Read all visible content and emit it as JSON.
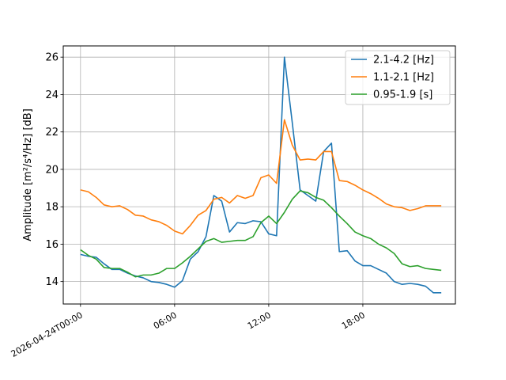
{
  "chart_data": {
    "type": "line",
    "ylabel": "Amplitude [m²/s⁴/Hz] [dB]",
    "ylim": [
      12.8,
      26.6
    ],
    "xlim_hours": [
      -1.1,
      23.9
    ],
    "grid": true,
    "legend_position": "top-right",
    "yticks": [
      14,
      16,
      18,
      20,
      22,
      24,
      26
    ],
    "xticks": [
      {
        "hour": 0,
        "label": "2026-04-24T00:00"
      },
      {
        "hour": 6,
        "label": "06:00"
      },
      {
        "hour": 12,
        "label": "12:00"
      },
      {
        "hour": 18,
        "label": "18:00"
      }
    ],
    "x_hours": [
      0,
      0.5,
      1,
      1.5,
      2,
      2.5,
      3,
      3.5,
      4,
      4.5,
      5,
      5.5,
      6,
      6.5,
      7,
      7.5,
      8,
      8.5,
      9,
      9.5,
      10,
      10.5,
      11,
      11.5,
      12,
      12.5,
      13,
      13.5,
      14,
      14.5,
      15,
      15.5,
      16,
      16.5,
      17,
      17.5,
      18,
      18.5,
      19,
      19.5,
      20,
      20.5,
      21,
      21.5,
      22,
      22.5,
      23
    ],
    "series": [
      {
        "name": "2.1-4.2 [Hz]",
        "color": "#1f77b4",
        "values": [
          15.45,
          15.35,
          15.3,
          14.95,
          14.65,
          14.65,
          14.45,
          14.3,
          14.2,
          14.0,
          13.95,
          13.85,
          13.7,
          14.05,
          15.2,
          15.6,
          16.4,
          18.6,
          18.3,
          16.65,
          17.15,
          17.1,
          17.25,
          17.2,
          16.55,
          16.45,
          26.0,
          22.5,
          18.9,
          18.6,
          18.3,
          20.95,
          21.4,
          15.6,
          15.65,
          15.1,
          14.85,
          14.85,
          14.65,
          14.45,
          14.0,
          13.85,
          13.9,
          13.85,
          13.75,
          13.4,
          13.4
        ]
      },
      {
        "name": "1.1-2.1 [Hz]",
        "color": "#ff7f0e",
        "values": [
          18.9,
          18.8,
          18.5,
          18.1,
          18.0,
          18.05,
          17.85,
          17.55,
          17.5,
          17.3,
          17.2,
          17.0,
          16.7,
          16.55,
          17.0,
          17.55,
          17.8,
          18.4,
          18.5,
          18.2,
          18.6,
          18.45,
          18.6,
          19.55,
          19.7,
          19.25,
          22.65,
          21.3,
          20.5,
          20.55,
          20.5,
          20.95,
          20.95,
          19.4,
          19.35,
          19.15,
          18.9,
          18.7,
          18.45,
          18.15,
          18.0,
          17.95,
          17.8,
          17.9,
          18.05,
          18.05,
          18.05
        ]
      },
      {
        "name": "0.95-1.9 [s]",
        "color": "#2ca02c",
        "values": [
          15.7,
          15.4,
          15.2,
          14.75,
          14.7,
          14.7,
          14.5,
          14.25,
          14.35,
          14.35,
          14.45,
          14.7,
          14.7,
          15.0,
          15.35,
          15.75,
          16.15,
          16.3,
          16.1,
          16.15,
          16.2,
          16.2,
          16.4,
          17.15,
          17.5,
          17.1,
          17.7,
          18.4,
          18.85,
          18.75,
          18.5,
          18.35,
          17.95,
          17.5,
          17.1,
          16.65,
          16.45,
          16.3,
          16.0,
          15.8,
          15.5,
          14.95,
          14.8,
          14.85,
          14.7,
          14.65,
          14.6
        ]
      }
    ]
  }
}
